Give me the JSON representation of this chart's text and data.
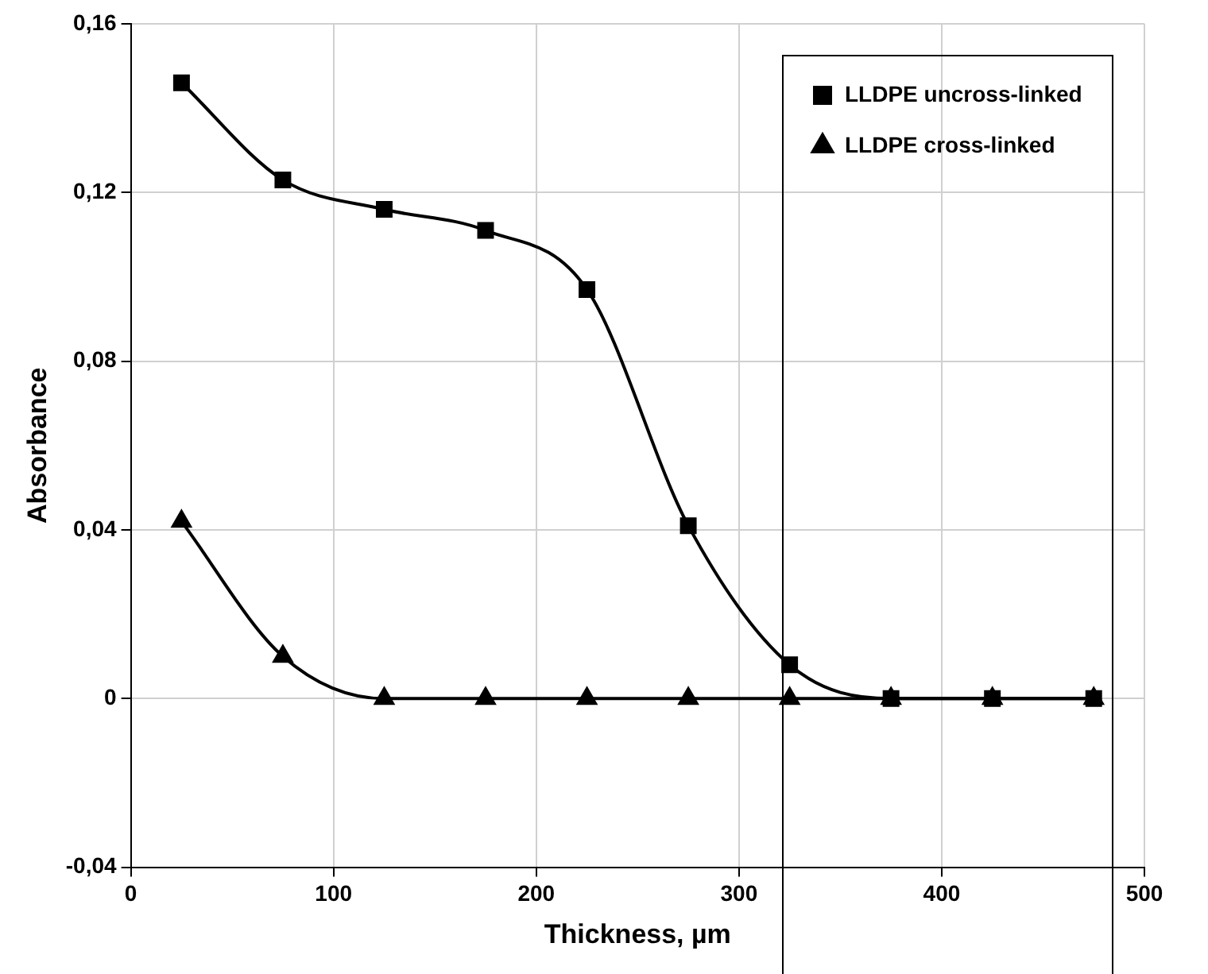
{
  "chart_data": {
    "type": "line",
    "xlabel": "Thickness, µm",
    "ylabel": "Absorbance",
    "xlim": [
      0,
      500
    ],
    "xticks": [
      0,
      100,
      200,
      300,
      400,
      500
    ],
    "ylim": [
      -0.04,
      0.16
    ],
    "yticks": [
      {
        "value": -0.04,
        "label": "-0,04"
      },
      {
        "value": 0,
        "label": "0"
      },
      {
        "value": 0.04,
        "label": "0,04"
      },
      {
        "value": 0.08,
        "label": "0,08"
      },
      {
        "value": 0.12,
        "label": "0,12"
      },
      {
        "value": 0.16,
        "label": "0,16"
      }
    ],
    "grid": true,
    "legend": "top right",
    "line_style": "solid",
    "x": [
      25,
      75,
      125,
      175,
      225,
      275,
      325,
      375,
      425,
      475
    ],
    "series": [
      {
        "name": "LLDPE uncross-linked",
        "color": "#000000",
        "marker": "square",
        "values": [
          0.146,
          0.123,
          0.116,
          0.111,
          0.097,
          0.041,
          0.008,
          0,
          0,
          0
        ]
      },
      {
        "name": "LLDPE cross-linked",
        "color": "#000000",
        "marker": "triangle",
        "values": [
          0.042,
          0.01,
          0,
          0,
          0,
          0,
          0,
          0,
          0,
          0
        ]
      }
    ]
  }
}
